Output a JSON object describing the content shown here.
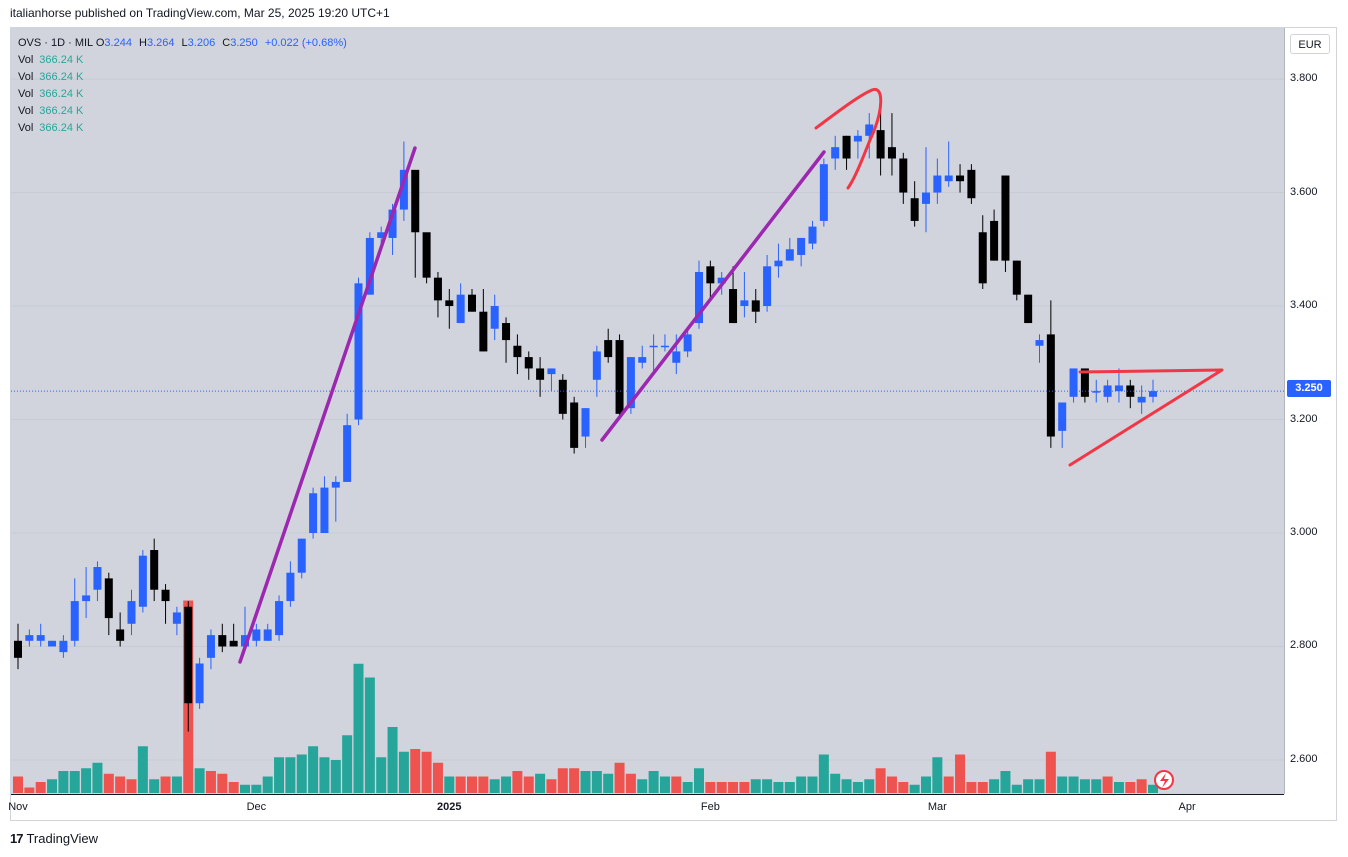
{
  "caption": "italianhorse published on TradingView.com, Mar 25, 2025 19:20 UTC+1",
  "currency": "EUR",
  "brand": "TradingView",
  "legend": {
    "symbol": "OVS · 1D · MIL",
    "o_label": "O",
    "o": "3.244",
    "h_label": "H",
    "h": "3.264",
    "l_label": "L",
    "l": "3.206",
    "c_label": "C",
    "c": "3.250",
    "change": "+0.022 (+0.68%)",
    "vol_rows": [
      {
        "label": "Vol",
        "value": "366.24 K"
      },
      {
        "label": "Vol",
        "value": "366.24 K"
      },
      {
        "label": "Vol",
        "value": "366.24 K"
      },
      {
        "label": "Vol",
        "value": "366.24 K"
      },
      {
        "label": "Vol",
        "value": "366.24 K"
      }
    ]
  },
  "current_price": "3.250",
  "colors": {
    "up": "#2962ff",
    "down": "#000000",
    "vol_up": "#26a69a",
    "vol_down": "#ef5350",
    "trend": "#9c27b0",
    "triangle": "#f23645",
    "background": "#d1d4dc"
  },
  "chart_data": {
    "type": "candlestick",
    "ylim": [
      2.54,
      3.89
    ],
    "price_ticks": [
      "3.800",
      "3.600",
      "3.400",
      "3.200",
      "3.000",
      "2.800",
      "2.600"
    ],
    "price_tick_values": [
      3.8,
      3.6,
      3.4,
      3.2,
      3.0,
      2.8,
      2.6
    ],
    "time_ticks": [
      {
        "label": "Nov",
        "bar": 0,
        "bold": false
      },
      {
        "label": "Dec",
        "bar": 21,
        "bold": false
      },
      {
        "label": "2025",
        "bar": 38,
        "bold": true
      },
      {
        "label": "Feb",
        "bar": 61,
        "bold": false
      },
      {
        "label": "Mar",
        "bar": 81,
        "bold": false
      },
      {
        "label": "Apr",
        "bar": 103,
        "bold": false
      }
    ],
    "bars": [
      [
        2.81,
        2.84,
        2.76,
        2.78
      ],
      [
        2.81,
        2.83,
        2.8,
        2.82
      ],
      [
        2.81,
        2.84,
        2.8,
        2.82
      ],
      [
        2.8,
        2.81,
        2.8,
        2.81
      ],
      [
        2.79,
        2.82,
        2.78,
        2.81
      ],
      [
        2.81,
        2.92,
        2.8,
        2.88
      ],
      [
        2.88,
        2.94,
        2.85,
        2.89
      ],
      [
        2.9,
        2.95,
        2.88,
        2.94
      ],
      [
        2.92,
        2.93,
        2.82,
        2.85
      ],
      [
        2.83,
        2.86,
        2.8,
        2.81
      ],
      [
        2.84,
        2.9,
        2.82,
        2.88
      ],
      [
        2.87,
        2.97,
        2.86,
        2.96
      ],
      [
        2.97,
        2.99,
        2.88,
        2.9
      ],
      [
        2.9,
        2.91,
        2.84,
        2.88
      ],
      [
        2.84,
        2.87,
        2.82,
        2.86
      ],
      [
        2.87,
        2.88,
        2.65,
        2.7
      ],
      [
        2.7,
        2.78,
        2.69,
        2.77
      ],
      [
        2.78,
        2.83,
        2.76,
        2.82
      ],
      [
        2.82,
        2.84,
        2.79,
        2.8
      ],
      [
        2.81,
        2.84,
        2.8,
        2.8
      ],
      [
        2.8,
        2.87,
        2.8,
        2.82
      ],
      [
        2.81,
        2.84,
        2.8,
        2.83
      ],
      [
        2.81,
        2.84,
        2.81,
        2.83
      ],
      [
        2.82,
        2.89,
        2.81,
        2.88
      ],
      [
        2.88,
        2.95,
        2.87,
        2.93
      ],
      [
        2.93,
        2.99,
        2.92,
        2.99
      ],
      [
        3.0,
        3.08,
        2.99,
        3.07
      ],
      [
        3.0,
        3.1,
        3.0,
        3.08
      ],
      [
        3.08,
        3.1,
        3.02,
        3.09
      ],
      [
        3.09,
        3.21,
        3.09,
        3.19
      ],
      [
        3.2,
        3.45,
        3.19,
        3.44
      ],
      [
        3.42,
        3.53,
        3.42,
        3.52
      ],
      [
        3.52,
        3.54,
        3.5,
        3.53
      ],
      [
        3.52,
        3.58,
        3.49,
        3.57
      ],
      [
        3.57,
        3.69,
        3.55,
        3.64
      ],
      [
        3.64,
        3.62,
        3.45,
        3.53
      ],
      [
        3.53,
        3.48,
        3.44,
        3.45
      ],
      [
        3.45,
        3.46,
        3.38,
        3.41
      ],
      [
        3.41,
        3.43,
        3.36,
        3.4
      ],
      [
        3.37,
        3.44,
        3.37,
        3.42
      ],
      [
        3.42,
        3.43,
        3.39,
        3.39
      ],
      [
        3.39,
        3.43,
        3.32,
        3.32
      ],
      [
        3.36,
        3.42,
        3.34,
        3.4
      ],
      [
        3.37,
        3.38,
        3.3,
        3.34
      ],
      [
        3.33,
        3.35,
        3.28,
        3.31
      ],
      [
        3.31,
        3.32,
        3.27,
        3.29
      ],
      [
        3.29,
        3.31,
        3.24,
        3.27
      ],
      [
        3.28,
        3.29,
        3.25,
        3.29
      ],
      [
        3.27,
        3.28,
        3.2,
        3.21
      ],
      [
        3.23,
        3.24,
        3.14,
        3.15
      ],
      [
        3.17,
        3.22,
        3.15,
        3.22
      ],
      [
        3.27,
        3.33,
        3.24,
        3.32
      ],
      [
        3.34,
        3.36,
        3.3,
        3.31
      ],
      [
        3.34,
        3.35,
        3.2,
        3.21
      ],
      [
        3.22,
        3.31,
        3.21,
        3.31
      ],
      [
        3.3,
        3.33,
        3.29,
        3.31
      ],
      [
        3.33,
        3.35,
        3.28,
        3.33
      ],
      [
        3.33,
        3.35,
        3.32,
        3.33
      ],
      [
        3.3,
        3.35,
        3.28,
        3.32
      ],
      [
        3.32,
        3.36,
        3.31,
        3.35
      ],
      [
        3.37,
        3.48,
        3.36,
        3.46
      ],
      [
        3.47,
        3.48,
        3.41,
        3.44
      ],
      [
        3.44,
        3.46,
        3.42,
        3.45
      ],
      [
        3.43,
        3.47,
        3.37,
        3.37
      ],
      [
        3.4,
        3.46,
        3.38,
        3.41
      ],
      [
        3.41,
        3.43,
        3.37,
        3.39
      ],
      [
        3.4,
        3.49,
        3.39,
        3.47
      ],
      [
        3.47,
        3.51,
        3.45,
        3.48
      ],
      [
        3.48,
        3.52,
        3.48,
        3.5
      ],
      [
        3.49,
        3.52,
        3.47,
        3.52
      ],
      [
        3.51,
        3.55,
        3.5,
        3.54
      ],
      [
        3.55,
        3.66,
        3.54,
        3.65
      ],
      [
        3.66,
        3.7,
        3.64,
        3.68
      ],
      [
        3.7,
        3.7,
        3.64,
        3.66
      ],
      [
        3.69,
        3.71,
        3.66,
        3.7
      ],
      [
        3.7,
        3.74,
        3.66,
        3.72
      ],
      [
        3.71,
        3.75,
        3.63,
        3.66
      ],
      [
        3.68,
        3.74,
        3.63,
        3.66
      ],
      [
        3.66,
        3.67,
        3.58,
        3.6
      ],
      [
        3.59,
        3.62,
        3.54,
        3.55
      ],
      [
        3.58,
        3.68,
        3.53,
        3.6
      ],
      [
        3.6,
        3.66,
        3.58,
        3.63
      ],
      [
        3.62,
        3.69,
        3.61,
        3.63
      ],
      [
        3.63,
        3.65,
        3.6,
        3.62
      ],
      [
        3.64,
        3.65,
        3.58,
        3.59
      ],
      [
        3.53,
        3.56,
        3.43,
        3.44
      ],
      [
        3.55,
        3.57,
        3.48,
        3.48
      ],
      [
        3.63,
        3.63,
        3.46,
        3.48
      ],
      [
        3.48,
        3.48,
        3.41,
        3.42
      ],
      [
        3.42,
        3.42,
        3.37,
        3.37
      ],
      [
        3.33,
        3.35,
        3.3,
        3.34
      ],
      [
        3.35,
        3.41,
        3.15,
        3.17
      ],
      [
        3.18,
        3.23,
        3.15,
        3.23
      ],
      [
        3.24,
        3.29,
        3.23,
        3.29
      ],
      [
        3.29,
        3.29,
        3.23,
        3.24
      ],
      [
        3.25,
        3.27,
        3.23,
        3.25
      ],
      [
        3.24,
        3.27,
        3.23,
        3.26
      ],
      [
        3.25,
        3.29,
        3.23,
        3.26
      ],
      [
        3.26,
        3.27,
        3.22,
        3.24
      ],
      [
        3.23,
        3.26,
        3.21,
        3.24
      ],
      [
        3.24,
        3.27,
        3.23,
        3.25
      ]
    ],
    "volume": [
      [
        6,
        0
      ],
      [
        2,
        0
      ],
      [
        4,
        0
      ],
      [
        5,
        1
      ],
      [
        8,
        1
      ],
      [
        8,
        1
      ],
      [
        9,
        1
      ],
      [
        11,
        1
      ],
      [
        7,
        0
      ],
      [
        6,
        0
      ],
      [
        5,
        0
      ],
      [
        17,
        1
      ],
      [
        5,
        1
      ],
      [
        6,
        0
      ],
      [
        6,
        1
      ],
      [
        70,
        0
      ],
      [
        9,
        1
      ],
      [
        8,
        0
      ],
      [
        7,
        0
      ],
      [
        4,
        0
      ],
      [
        3,
        1
      ],
      [
        3,
        1
      ],
      [
        6,
        1
      ],
      [
        13,
        1
      ],
      [
        13,
        1
      ],
      [
        14,
        1
      ],
      [
        17,
        1
      ],
      [
        13,
        1
      ],
      [
        12,
        1
      ],
      [
        21,
        1
      ],
      [
        47,
        1
      ],
      [
        42,
        1
      ],
      [
        13,
        1
      ],
      [
        24,
        1
      ],
      [
        15,
        1
      ],
      [
        16,
        0
      ],
      [
        15,
        0
      ],
      [
        11,
        0
      ],
      [
        6,
        1
      ],
      [
        6,
        0
      ],
      [
        6,
        0
      ],
      [
        6,
        0
      ],
      [
        5,
        1
      ],
      [
        6,
        1
      ],
      [
        8,
        0
      ],
      [
        6,
        0
      ],
      [
        7,
        1
      ],
      [
        5,
        0
      ],
      [
        9,
        0
      ],
      [
        9,
        0
      ],
      [
        8,
        1
      ],
      [
        8,
        1
      ],
      [
        7,
        1
      ],
      [
        11,
        0
      ],
      [
        7,
        0
      ],
      [
        5,
        1
      ],
      [
        8,
        1
      ],
      [
        6,
        1
      ],
      [
        6,
        0
      ],
      [
        4,
        1
      ],
      [
        9,
        1
      ],
      [
        4,
        0
      ],
      [
        4,
        0
      ],
      [
        4,
        0
      ],
      [
        4,
        0
      ],
      [
        5,
        1
      ],
      [
        5,
        1
      ],
      [
        4,
        1
      ],
      [
        4,
        1
      ],
      [
        6,
        1
      ],
      [
        6,
        1
      ],
      [
        14,
        1
      ],
      [
        7,
        1
      ],
      [
        5,
        1
      ],
      [
        4,
        1
      ],
      [
        5,
        1
      ],
      [
        9,
        0
      ],
      [
        6,
        0
      ],
      [
        4,
        0
      ],
      [
        3,
        1
      ],
      [
        6,
        1
      ],
      [
        13,
        1
      ],
      [
        6,
        0
      ],
      [
        14,
        0
      ],
      [
        4,
        0
      ],
      [
        4,
        0
      ],
      [
        5,
        1
      ],
      [
        8,
        1
      ],
      [
        3,
        1
      ],
      [
        5,
        1
      ],
      [
        5,
        1
      ],
      [
        15,
        0
      ],
      [
        6,
        1
      ],
      [
        6,
        1
      ],
      [
        5,
        1
      ],
      [
        5,
        1
      ],
      [
        6,
        0
      ],
      [
        4,
        1
      ],
      [
        4,
        0
      ],
      [
        5,
        0
      ],
      [
        3,
        1
      ]
    ]
  }
}
